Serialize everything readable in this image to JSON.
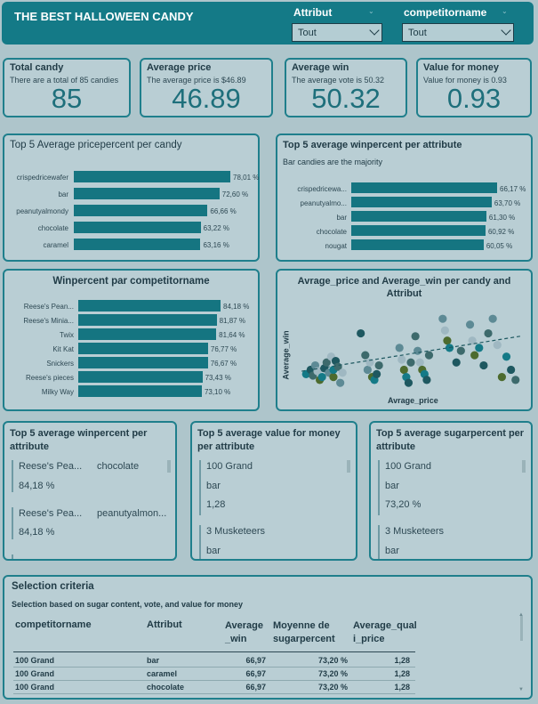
{
  "header": {
    "title": "THE BEST HALLOWEEN CANDY",
    "filters": [
      {
        "label": "Attribut",
        "value": "Tout"
      },
      {
        "label": "competitorname",
        "value": "Tout"
      }
    ]
  },
  "kpis": [
    {
      "title": "Total candy",
      "subtitle": "There are a total of 85 candies",
      "value": "85"
    },
    {
      "title": "Average price",
      "subtitle": "The average price is $46.89",
      "value": "46.89"
    },
    {
      "title": "Average win",
      "subtitle": "The average vote is 50.32",
      "value": "50.32"
    },
    {
      "title": "Value for money",
      "subtitle": "Value for money is 0.93",
      "value": "0.93"
    }
  ],
  "chart_data": [
    {
      "type": "bar",
      "title": "Top 5 Average pricepercent per candy",
      "categories": [
        "crispedricewafer",
        "bar",
        "peanutyalmondy",
        "chocolate",
        "caramel"
      ],
      "values": [
        78.01,
        72.6,
        66.66,
        63.22,
        63.16
      ],
      "labels": [
        "78,01 %",
        "72,60 %",
        "66,66 %",
        "63,22 %",
        "63,16 %"
      ]
    },
    {
      "type": "bar",
      "title": "Top 5 average winpercent per attribute",
      "subtitle": "Bar candies are the majority",
      "categories": [
        "crispedricewa...",
        "peanutyalmo...",
        "bar",
        "chocolate",
        "nougat"
      ],
      "values": [
        66.17,
        63.7,
        61.3,
        60.92,
        60.05
      ],
      "labels": [
        "66,17 %",
        "63,70 %",
        "61,30 %",
        "60,92 %",
        "60,05 %"
      ]
    },
    {
      "type": "bar",
      "title": "Winpercent par competitorname",
      "categories": [
        "Reese's Pean...",
        "Reese's Minia...",
        "Twix",
        "Kit Kat",
        "Snickers",
        "Reese's pieces",
        "Milky Way"
      ],
      "values": [
        84.18,
        81.87,
        81.64,
        76.77,
        76.67,
        73.43,
        73.1
      ],
      "labels": [
        "84,18 %",
        "81,87 %",
        "81,64 %",
        "76,77 %",
        "76,67 %",
        "73,43 %",
        "73,10 %"
      ]
    },
    {
      "type": "scatter",
      "title": "Avrage_price and Average_win per candy and Attribut",
      "xlabel": "Avrage_price",
      "ylabel": "Average_win",
      "series": [
        {
          "x": [
            4,
            6,
            7,
            8,
            9,
            10,
            11,
            12,
            13,
            14,
            15,
            16,
            16,
            17,
            18,
            19,
            20
          ],
          "y": [
            32,
            35,
            31,
            38,
            34,
            28,
            30,
            36,
            40,
            33,
            44,
            30,
            35,
            41,
            37,
            26,
            33
          ]
        },
        {
          "x": [
            28,
            30,
            31,
            32,
            33,
            34,
            35,
            36,
            45,
            46,
            47,
            48,
            49,
            50
          ],
          "y": [
            60,
            45,
            35,
            40,
            30,
            28,
            32,
            38,
            50,
            42,
            35,
            30,
            26,
            40
          ]
        },
        {
          "x": [
            52,
            53,
            54,
            55,
            56,
            57,
            58,
            64,
            65,
            66,
            67,
            70,
            72
          ],
          "y": [
            58,
            48,
            40,
            35,
            32,
            28,
            45,
            70,
            62,
            55,
            50,
            40,
            48
          ]
        },
        {
          "x": [
            76,
            77,
            78,
            80,
            82,
            84,
            86,
            88,
            90,
            92,
            94,
            96
          ],
          "y": [
            66,
            55,
            45,
            50,
            38,
            60,
            70,
            52,
            30,
            44,
            35,
            28
          ]
        }
      ]
    }
  ],
  "topwin": {
    "title": "Top 5 average winpercent per attribute",
    "items": [
      {
        "name": "Reese's Pea...",
        "attr": "chocolate",
        "value": "84,18 %"
      },
      {
        "name": "Reese's Pea...",
        "attr": "peanutyalmon...",
        "value": "84,18 %"
      }
    ]
  },
  "topvalue": {
    "title": "Top 5 average value for money per attribute",
    "items": [
      {
        "name": "100 Grand",
        "attr": "bar",
        "value": "1,28"
      },
      {
        "name": "3 Musketeers",
        "attr": "bar"
      }
    ]
  },
  "topsugar": {
    "title": "Top 5 average sugarpercent per attribute",
    "items": [
      {
        "name": "100 Grand",
        "attr": "bar",
        "value": "73,20 %"
      },
      {
        "name": "3 Musketeers",
        "attr": "bar"
      }
    ]
  },
  "selection": {
    "title": "Selection criteria",
    "subtitle": "Selection based on sugar content, vote, and value for money",
    "columns": [
      "competitorname",
      "Attribut",
      "Average_win",
      "Moyenne de sugarpercent",
      "Average_quali_price"
    ],
    "rows": [
      [
        "100 Grand",
        "bar",
        "66,97",
        "73,20 %",
        "1,28"
      ],
      [
        "100 Grand",
        "caramel",
        "66,97",
        "73,20 %",
        "1,28"
      ],
      [
        "100 Grand",
        "chocolate",
        "66,97",
        "73,20 %",
        "1,28"
      ]
    ]
  },
  "colors": {
    "accent": "#147a87",
    "bar": "#157581",
    "background": "#aec5cb"
  }
}
